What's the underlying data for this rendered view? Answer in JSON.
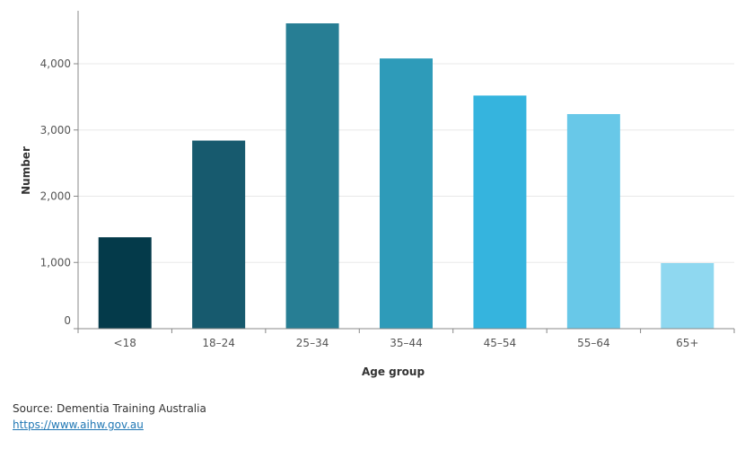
{
  "chart_data": {
    "type": "bar",
    "categories": [
      "<18",
      "18–24",
      "25–34",
      "35–44",
      "45–54",
      "55–64",
      "65+"
    ],
    "values": [
      1380,
      2840,
      4610,
      4080,
      3520,
      3240,
      990
    ],
    "colors": [
      "#043A4A",
      "#175A6E",
      "#277E94",
      "#2E9BB9",
      "#35B4DE",
      "#68C8E8",
      "#8FD8F0"
    ],
    "xlabel": "Age group",
    "ylabel": "Number",
    "ylim": [
      0,
      4800
    ],
    "yticks": [
      0,
      1000,
      2000,
      3000,
      4000
    ],
    "ytick_labels": [
      "0",
      "1,000",
      "2,000",
      "3,000",
      "4,000"
    ],
    "grid": true
  },
  "footer": {
    "source": "Source: Dementia Training Australia",
    "link": "https://www.aihw.gov.au"
  }
}
